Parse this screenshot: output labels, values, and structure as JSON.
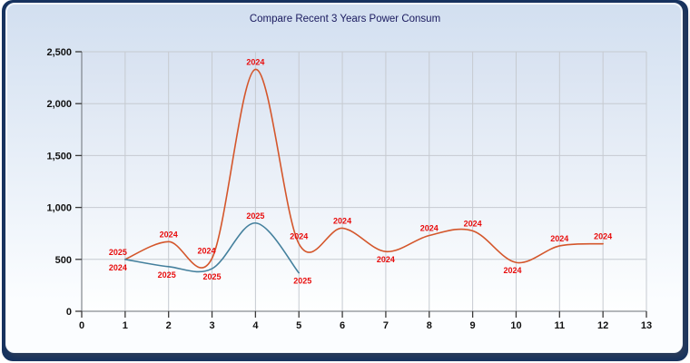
{
  "window": {
    "background_color": "#17335f",
    "canvas_color": "#ffffff"
  },
  "panel": {
    "top_color": "#d2dff0",
    "bottom_color": "#fbfdff"
  },
  "title": "Compare Recent 3 Years Power Consum",
  "title_color": "#1a1a5e",
  "chart_data": {
    "type": "line",
    "title": "Compare Recent 3 Years Power Consum",
    "xlabel": "",
    "ylabel": "",
    "xlim": [
      0,
      13
    ],
    "ylim": [
      0,
      2500
    ],
    "grid": true,
    "legend": "none",
    "line_style": "smooth-spline",
    "point_label_color": "#e80c0c",
    "gridline_color": "#c6cad0",
    "axis_color": "#6a6f75",
    "tick_color": "#3a3a3a",
    "plot_bg_top": "#d8e2f1",
    "plot_bg_bottom": "#feffff",
    "x_ticks": [
      "0",
      "1",
      "2",
      "3",
      "4",
      "5",
      "6",
      "7",
      "8",
      "9",
      "10",
      "11",
      "12",
      "13"
    ],
    "y_ticks": [
      {
        "value": 0,
        "label": "0"
      },
      {
        "value": 500,
        "label": "500"
      },
      {
        "value": 1000,
        "label": "1,000"
      },
      {
        "value": 1500,
        "label": "1,500"
      },
      {
        "value": 2000,
        "label": "2,000"
      },
      {
        "value": 2500,
        "label": "2,500"
      }
    ],
    "series": [
      {
        "name": "2024",
        "color": "#d4562b",
        "x": [
          1,
          2,
          3,
          4,
          5,
          6,
          7,
          8,
          9,
          10,
          11,
          12
        ],
        "y": [
          500,
          670,
          510,
          2330,
          650,
          800,
          575,
          730,
          775,
          470,
          630,
          650
        ],
        "label_pos": [
          "below",
          "above",
          "above",
          "above",
          "above",
          "above",
          "below",
          "above",
          "above",
          "below",
          "above",
          "above"
        ],
        "label_dx": [
          -8,
          0,
          -6,
          0,
          0,
          0,
          0,
          0,
          0,
          -4,
          0,
          0
        ]
      },
      {
        "name": "2025",
        "color": "#44809d",
        "x": [
          1,
          2,
          3,
          4,
          5
        ],
        "y": [
          500,
          430,
          410,
          850,
          370
        ],
        "label_pos": [
          "above",
          "below",
          "below",
          "above",
          "below"
        ],
        "label_dx": [
          -8,
          -2,
          0,
          0,
          4
        ]
      }
    ]
  }
}
